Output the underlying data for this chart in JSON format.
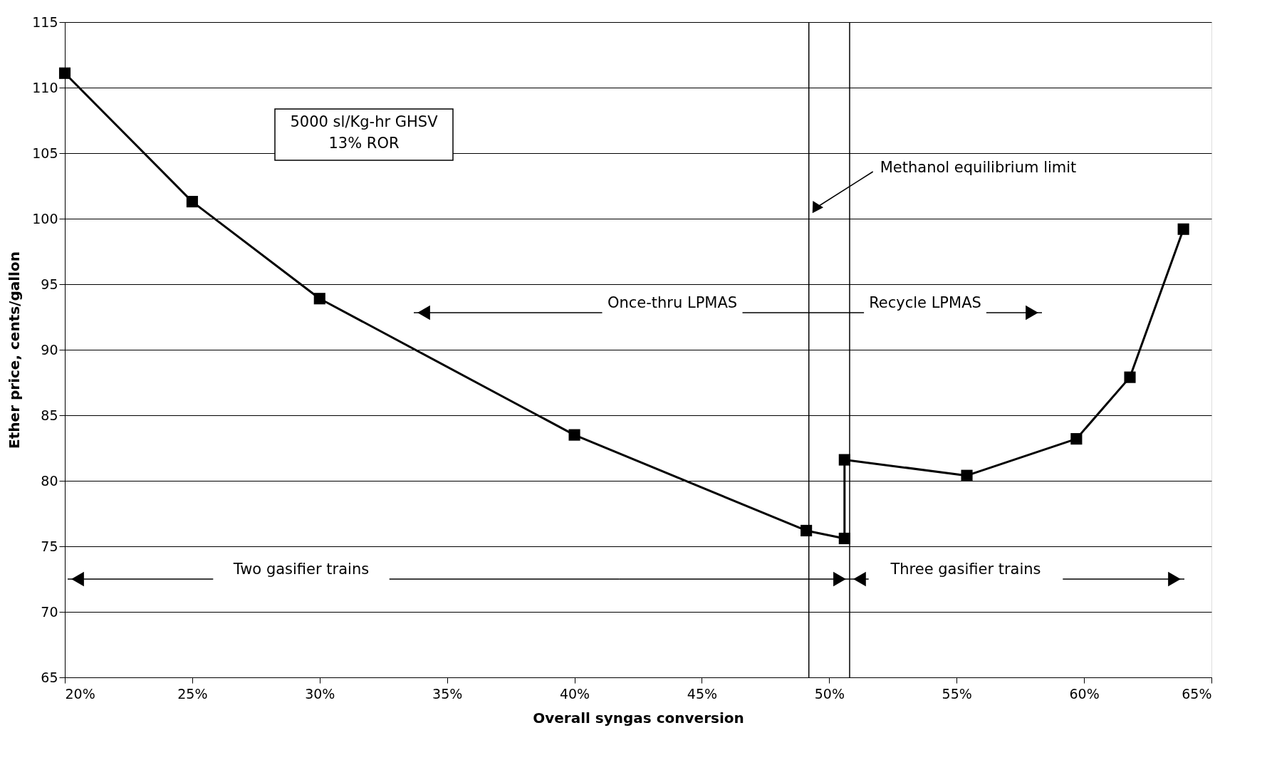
{
  "chart_data": {
    "type": "line",
    "xlabel": "Overall syngas conversion",
    "ylabel": "Ether price, cents/gallon",
    "x": [
      20,
      25,
      30,
      40,
      49.1,
      50.6,
      50.6,
      55.4,
      59.7,
      61.8,
      63.9
    ],
    "series": [
      {
        "color": "#000000",
        "values": [
          111.1,
          101.3,
          93.9,
          83.5,
          76.2,
          75.6,
          81.6,
          80.4,
          83.2,
          87.9,
          99.2
        ]
      }
    ],
    "xlim": [
      20,
      65
    ],
    "ylim": [
      65,
      115
    ],
    "xticks": [
      {
        "value": 20,
        "label": "20%"
      },
      {
        "value": 25,
        "label": "25%"
      },
      {
        "value": 30,
        "label": "30%"
      },
      {
        "value": 35,
        "label": "35%"
      },
      {
        "value": 40,
        "label": "40%"
      },
      {
        "value": 45,
        "label": "45%"
      },
      {
        "value": 50,
        "label": "50%"
      },
      {
        "value": 55,
        "label": "55%"
      },
      {
        "value": 60,
        "label": "60%"
      },
      {
        "value": 65,
        "label": "65%"
      }
    ],
    "yticks": [
      65,
      70,
      75,
      80,
      85,
      90,
      95,
      100,
      105,
      110,
      115
    ],
    "grid": "y",
    "marker": "square",
    "line_style": "solid",
    "ref_lines": [
      {
        "axis": "x",
        "value": 49.2,
        "label": "Methanol equilibrium limit"
      },
      {
        "axis": "x",
        "value": 50.8
      }
    ],
    "annotations": [
      "5000 sl/Kg-hr GHSV\n13% ROR",
      "Once-thru LPMAS",
      "Recycle LPMAS",
      "Two gasifier trains",
      "Three gasifier trains"
    ]
  }
}
